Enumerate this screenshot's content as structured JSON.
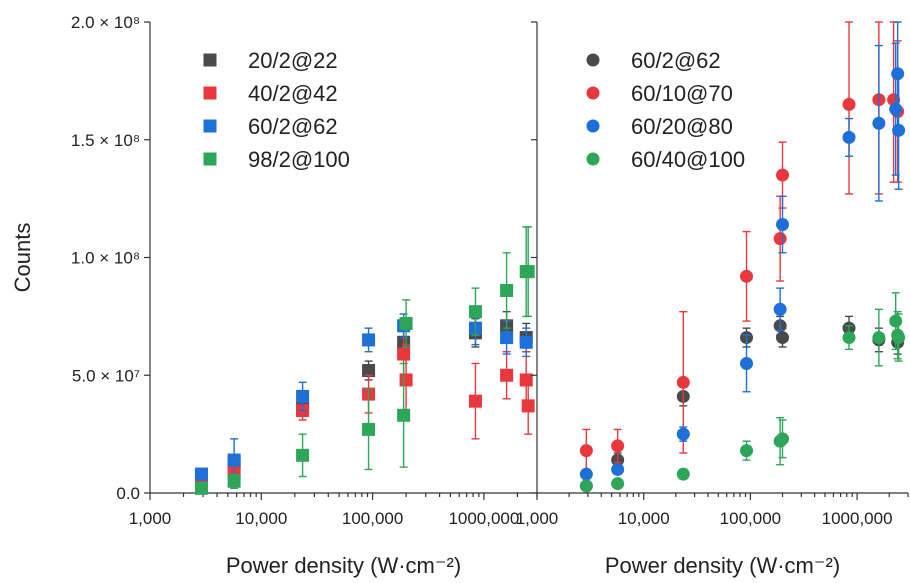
{
  "chart_data": {
    "type": "scatter",
    "ylabel": "Counts",
    "y_ticks": [
      "0.0",
      "5.0 × 10⁷",
      "1.0 × 10⁸",
      "1.5 × 10⁸",
      "2.0 × 10⁸"
    ],
    "ylim": [
      0,
      200000000
    ],
    "xscale": "log",
    "panels": [
      {
        "xlabel": "Power density (W·cm⁻²)",
        "xlim": [
          1000,
          3000000
        ],
        "x_ticks": [
          "1,000",
          "10,000",
          "100,000",
          "1000,000"
        ],
        "legend_position": "top-left",
        "marker": "square",
        "series": [
          {
            "name": "20/2@22",
            "color": "#4a4a4a",
            "points": [
              {
                "x": 2900,
                "y": 8000000,
                "err": 1000000
              },
              {
                "x": 5700,
                "y": 13000000,
                "err": 2000000
              },
              {
                "x": 23500,
                "y": 36000000,
                "err": 3000000
              },
              {
                "x": 92000,
                "y": 52000000,
                "err": 4000000
              },
              {
                "x": 190000,
                "y": 64000000,
                "err": 5000000
              },
              {
                "x": 840000,
                "y": 68000000,
                "err": 6000000
              },
              {
                "x": 1600000,
                "y": 71000000,
                "err": 6000000
              },
              {
                "x": 2400000,
                "y": 66000000,
                "err": 6000000
              }
            ]
          },
          {
            "name": "40/2@42",
            "color": "#e8383d",
            "points": [
              {
                "x": 2900,
                "y": 6000000,
                "err": 2000000
              },
              {
                "x": 5700,
                "y": 9000000,
                "err": 3000000
              },
              {
                "x": 23500,
                "y": 35000000,
                "err": 4000000
              },
              {
                "x": 92000,
                "y": 42000000,
                "err": 8000000
              },
              {
                "x": 190000,
                "y": 59000000,
                "err": 10000000
              },
              {
                "x": 200000,
                "y": 48000000,
                "err": 15000000
              },
              {
                "x": 840000,
                "y": 39000000,
                "err": 16000000
              },
              {
                "x": 1600000,
                "y": 50000000,
                "err": 10000000
              },
              {
                "x": 2400000,
                "y": 48000000,
                "err": 12000000
              },
              {
                "x": 2500000,
                "y": 37000000,
                "err": 12000000
              }
            ]
          },
          {
            "name": "60/2@62",
            "color": "#1f6fd8",
            "points": [
              {
                "x": 2900,
                "y": 8000000,
                "err": 1000000
              },
              {
                "x": 5700,
                "y": 14000000,
                "err": 9000000
              },
              {
                "x": 23500,
                "y": 41000000,
                "err": 6000000
              },
              {
                "x": 92000,
                "y": 65000000,
                "err": 5000000
              },
              {
                "x": 190000,
                "y": 71000000,
                "err": 5000000
              },
              {
                "x": 840000,
                "y": 70000000,
                "err": 7000000
              },
              {
                "x": 1600000,
                "y": 66000000,
                "err": 7000000
              },
              {
                "x": 2400000,
                "y": 64000000,
                "err": 6000000
              }
            ]
          },
          {
            "name": "98/2@100",
            "color": "#2ea65a",
            "points": [
              {
                "x": 2900,
                "y": 2000000,
                "err": 1000000
              },
              {
                "x": 5700,
                "y": 5000000,
                "err": 3000000
              },
              {
                "x": 23500,
                "y": 16000000,
                "err": 9000000
              },
              {
                "x": 92000,
                "y": 27000000,
                "err": 17000000
              },
              {
                "x": 190000,
                "y": 33000000,
                "err": 22000000
              },
              {
                "x": 200000,
                "y": 72000000,
                "err": 10000000
              },
              {
                "x": 840000,
                "y": 77000000,
                "err": 10000000
              },
              {
                "x": 1600000,
                "y": 86000000,
                "err": 16000000
              },
              {
                "x": 2400000,
                "y": 94000000,
                "err": 19000000
              },
              {
                "x": 2500000,
                "y": 94000000,
                "err": 19000000
              }
            ]
          }
        ]
      },
      {
        "xlabel": "Power density (W·cm⁻²)",
        "xlim": [
          1000,
          3000000
        ],
        "x_ticks": [
          "1,000",
          "10,000",
          "100,000",
          "1000,000"
        ],
        "legend_position": "top-left",
        "marker": "circle",
        "series": [
          {
            "name": "60/2@62",
            "color": "#4a4a4a",
            "points": [
              {
                "x": 2900,
                "y": 3000000,
                "err": 1000000
              },
              {
                "x": 5700,
                "y": 14000000,
                "err": 3000000
              },
              {
                "x": 23500,
                "y": 41000000,
                "err": 4000000
              },
              {
                "x": 92000,
                "y": 66000000,
                "err": 4000000
              },
              {
                "x": 190000,
                "y": 71000000,
                "err": 4000000
              },
              {
                "x": 200000,
                "y": 66000000,
                "err": 4000000
              },
              {
                "x": 840000,
                "y": 70000000,
                "err": 5000000
              },
              {
                "x": 1600000,
                "y": 65000000,
                "err": 5000000
              },
              {
                "x": 2400000,
                "y": 64000000,
                "err": 5000000
              }
            ]
          },
          {
            "name": "60/10@70",
            "color": "#e8383d",
            "points": [
              {
                "x": 2900,
                "y": 18000000,
                "err": 9000000
              },
              {
                "x": 5700,
                "y": 20000000,
                "err": 7000000
              },
              {
                "x": 23500,
                "y": 47000000,
                "err": 30000000
              },
              {
                "x": 92000,
                "y": 92000000,
                "err": 19000000
              },
              {
                "x": 190000,
                "y": 108000000,
                "err": 18000000
              },
              {
                "x": 200000,
                "y": 135000000,
                "err": 14000000
              },
              {
                "x": 840000,
                "y": 165000000,
                "err": 38000000
              },
              {
                "x": 1600000,
                "y": 167000000,
                "err": 40000000
              },
              {
                "x": 2200000,
                "y": 167000000,
                "err": 35000000
              },
              {
                "x": 2400000,
                "y": 162000000,
                "err": 30000000
              }
            ]
          },
          {
            "name": "60/20@80",
            "color": "#1f6fd8",
            "points": [
              {
                "x": 2900,
                "y": 8000000,
                "err": 1000000
              },
              {
                "x": 5700,
                "y": 10000000,
                "err": 2000000
              },
              {
                "x": 23500,
                "y": 25000000,
                "err": 3000000
              },
              {
                "x": 92000,
                "y": 55000000,
                "err": 12000000
              },
              {
                "x": 190000,
                "y": 78000000,
                "err": 9000000
              },
              {
                "x": 200000,
                "y": 114000000,
                "err": 12000000
              },
              {
                "x": 840000,
                "y": 151000000,
                "err": 8000000
              },
              {
                "x": 1600000,
                "y": 157000000,
                "err": 33000000
              },
              {
                "x": 2300000,
                "y": 163000000,
                "err": 28000000
              },
              {
                "x": 2400000,
                "y": 178000000,
                "err": 25000000
              },
              {
                "x": 2450000,
                "y": 154000000,
                "err": 25000000
              }
            ]
          },
          {
            "name": "60/40@100",
            "color": "#2ea65a",
            "points": [
              {
                "x": 2900,
                "y": 3000000,
                "err": 1000000
              },
              {
                "x": 5700,
                "y": 4000000,
                "err": 1000000
              },
              {
                "x": 23500,
                "y": 8000000,
                "err": 2000000
              },
              {
                "x": 92000,
                "y": 18000000,
                "err": 4000000
              },
              {
                "x": 190000,
                "y": 22000000,
                "err": 10000000
              },
              {
                "x": 200000,
                "y": 23000000,
                "err": 8000000
              },
              {
                "x": 840000,
                "y": 66000000,
                "err": 5000000
              },
              {
                "x": 1600000,
                "y": 66000000,
                "err": 12000000
              },
              {
                "x": 2300000,
                "y": 73000000,
                "err": 12000000
              },
              {
                "x": 2400000,
                "y": 67000000,
                "err": 10000000
              },
              {
                "x": 2450000,
                "y": 66000000,
                "err": 10000000
              }
            ]
          }
        ]
      }
    ]
  }
}
